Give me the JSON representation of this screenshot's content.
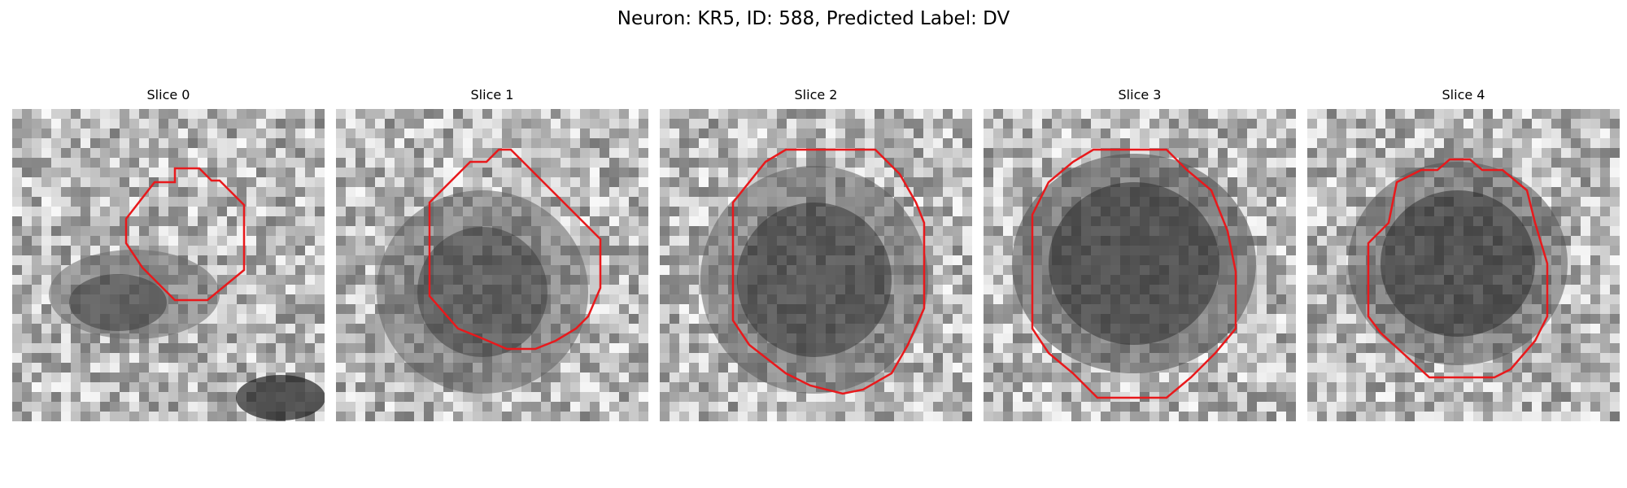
{
  "figure": {
    "title": "Neuron: KR5, ID: 588, Predicted Label: DV"
  },
  "panels": [
    {
      "title": "Slice 0"
    },
    {
      "title": "Slice 1"
    },
    {
      "title": "Slice 2"
    },
    {
      "title": "Slice 3"
    },
    {
      "title": "Slice 4"
    }
  ],
  "colors": {
    "contour": "#e8191c",
    "background": "#ffffff"
  }
}
